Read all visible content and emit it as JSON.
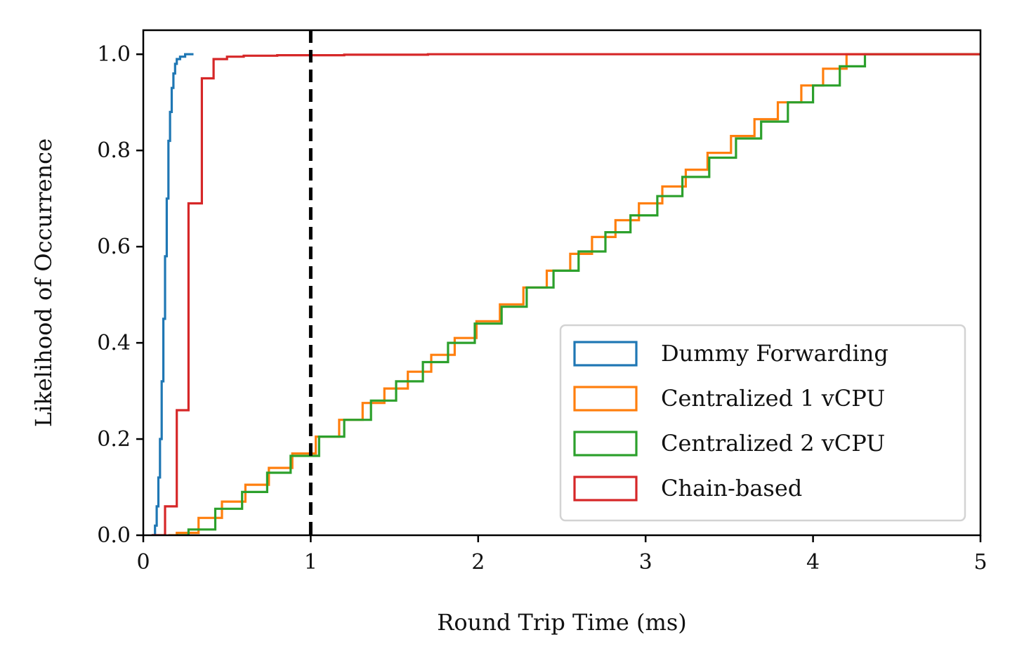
{
  "chart_data": {
    "type": "line",
    "subtype": "step-cdf",
    "title": "",
    "xlabel": "Round Trip Time (ms)",
    "ylabel": "Likelihood of Occurrence",
    "xlim": [
      0,
      5
    ],
    "ylim": [
      0,
      1.05
    ],
    "xticks": [
      0,
      1,
      2,
      3,
      4,
      5
    ],
    "xtick_labels": [
      "0",
      "1",
      "2",
      "3",
      "4",
      "5"
    ],
    "yticks": [
      0,
      0.2,
      0.4,
      0.6,
      0.8,
      1.0
    ],
    "ytick_labels": [
      "0.0",
      "0.2",
      "0.4",
      "0.6",
      "0.8",
      "1.0"
    ],
    "grid": false,
    "legend_position": "bottom-right",
    "reference_line": {
      "x": 1,
      "style": "dashed",
      "color": "#000000"
    },
    "series": [
      {
        "name": "Dummy Forwarding",
        "color": "#1f77b4",
        "x": [
          0.05,
          0.07,
          0.08,
          0.09,
          0.1,
          0.11,
          0.12,
          0.13,
          0.14,
          0.15,
          0.16,
          0.17,
          0.18,
          0.19,
          0.2,
          0.22,
          0.25,
          0.3
        ],
        "y": [
          0.0,
          0.02,
          0.06,
          0.12,
          0.2,
          0.32,
          0.45,
          0.58,
          0.7,
          0.82,
          0.88,
          0.93,
          0.96,
          0.98,
          0.99,
          0.995,
          1.0,
          1.0
        ]
      },
      {
        "name": "Centralized 1 vCPU",
        "color": "#ff7f0e",
        "x": [
          0.15,
          0.2,
          0.33,
          0.47,
          0.61,
          0.75,
          0.89,
          1.03,
          1.17,
          1.31,
          1.44,
          1.58,
          1.72,
          1.86,
          1.99,
          2.13,
          2.27,
          2.41,
          2.55,
          2.68,
          2.82,
          2.96,
          3.1,
          3.24,
          3.37,
          3.51,
          3.65,
          3.79,
          3.93,
          4.06,
          4.2,
          4.34,
          5.0
        ],
        "y": [
          0.0,
          0.005,
          0.036,
          0.07,
          0.105,
          0.14,
          0.17,
          0.205,
          0.24,
          0.275,
          0.305,
          0.34,
          0.375,
          0.41,
          0.445,
          0.48,
          0.515,
          0.55,
          0.585,
          0.62,
          0.655,
          0.69,
          0.725,
          0.76,
          0.795,
          0.83,
          0.865,
          0.9,
          0.935,
          0.97,
          1.0,
          1.0,
          1.0
        ]
      },
      {
        "name": "Centralized 2 vCPU",
        "color": "#2ca02c",
        "x": [
          0.2,
          0.27,
          0.43,
          0.59,
          0.74,
          0.88,
          1.05,
          1.2,
          1.36,
          1.51,
          1.67,
          1.82,
          1.98,
          2.14,
          2.29,
          2.45,
          2.6,
          2.76,
          2.91,
          3.07,
          3.22,
          3.38,
          3.54,
          3.69,
          3.85,
          4.0,
          4.16,
          4.31,
          5.0
        ],
        "y": [
          0.0,
          0.012,
          0.055,
          0.09,
          0.13,
          0.165,
          0.205,
          0.24,
          0.28,
          0.32,
          0.36,
          0.4,
          0.44,
          0.475,
          0.515,
          0.55,
          0.59,
          0.63,
          0.665,
          0.705,
          0.745,
          0.785,
          0.825,
          0.86,
          0.9,
          0.935,
          0.975,
          1.0,
          1.0
        ]
      },
      {
        "name": "Chain-based",
        "color": "#d62728",
        "x": [
          0.05,
          0.13,
          0.2,
          0.27,
          0.35,
          0.42,
          0.5,
          0.6,
          0.8,
          1.0,
          1.2,
          1.7,
          2.5,
          3.5,
          5.0
        ],
        "y": [
          0.0,
          0.06,
          0.26,
          0.69,
          0.95,
          0.99,
          0.995,
          0.997,
          0.998,
          0.998,
          0.999,
          1.0,
          1.0,
          1.0,
          1.0
        ]
      }
    ]
  }
}
